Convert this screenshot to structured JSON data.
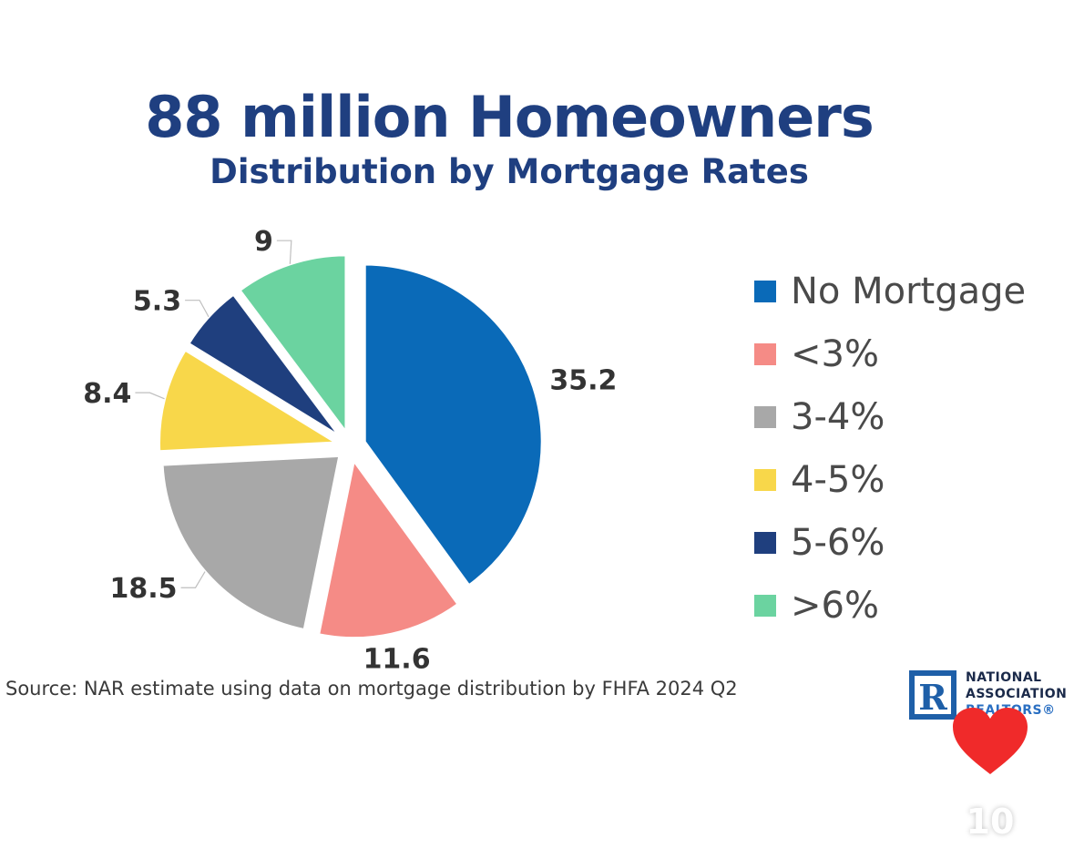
{
  "chart_data": {
    "type": "pie",
    "title": "88 million Homeowners",
    "subtitle": "Distribution by Mortgage Rates",
    "categories": [
      "No Mortgage",
      "<3%",
      "3-4%",
      "4-5%",
      "5-6%",
      ">6%"
    ],
    "values": [
      35.2,
      11.6,
      18.5,
      8.4,
      5.3,
      9
    ],
    "value_labels": [
      "35.2",
      "11.6",
      "18.5",
      "8.4",
      "5.3",
      "9"
    ],
    "colors": [
      "#0a6ab8",
      "#f58b86",
      "#a8a8a8",
      "#f8d74a",
      "#1f3f7e",
      "#6bd3a0"
    ],
    "legend_placement": "right",
    "exploded": true
  },
  "source_text": "Source: NAR estimate using data on mortgage distribution by FHFA 2024 Q2",
  "logo": {
    "line1": "NATIONAL",
    "line2": "ASSOCIATION",
    "line3": "REALTORS®",
    "mark": "R",
    "icon": "nar-logo-icon"
  },
  "overlay": {
    "like_icon": "heart-icon",
    "like_color": "#f02a2a",
    "like_count": "10"
  }
}
